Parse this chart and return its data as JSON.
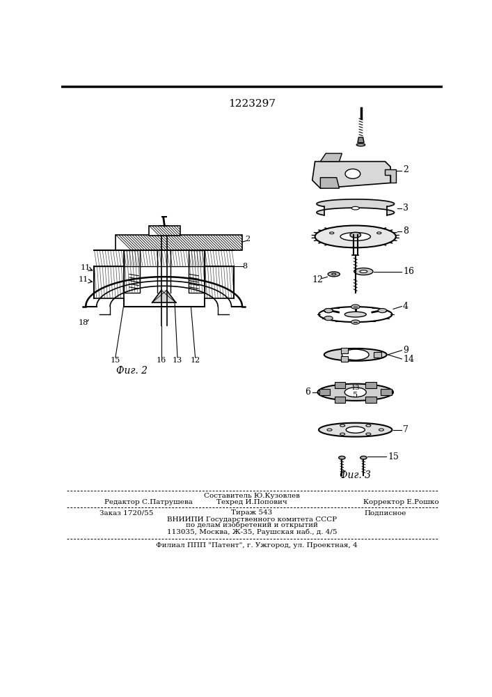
{
  "patent_number": "1223297",
  "background_color": "#f5f5f0",
  "fig2_caption": "Фиг. 2",
  "fig3_caption": "Фиг. 3",
  "footer_line1_left": "Редактор С.Патрушева",
  "footer_line1_mid_top": "Составитель Ю.Кузовлев",
  "footer_line1_mid": "Техред И.Попович",
  "footer_line1_right": "Корректор Е.Рошко",
  "footer_line2_left": "Заказ 1720/55",
  "footer_line2_mid": "Тираж 543",
  "footer_line2_right": "Подписное",
  "footer_line3": "ВНИИПИ Государственного комитета СССР",
  "footer_line4": "по делам изобретений и открытий",
  "footer_line5": "113035, Москва, Ж-35, Раушская наб., д. 4/5",
  "footer_line6": "Филиал ППП \"Патент\", г. Ужгород, ул. Проектная, 4"
}
